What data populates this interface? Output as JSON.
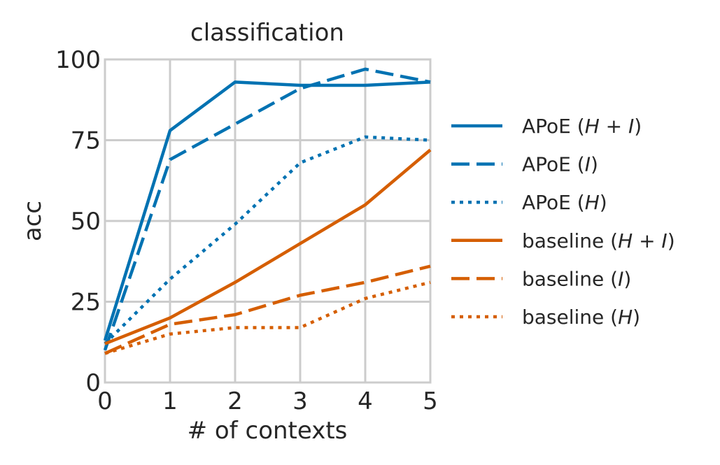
{
  "chart_data": {
    "type": "line",
    "title": "classification",
    "xlabel": "# of contexts",
    "ylabel": "acc",
    "xlim": [
      0,
      5
    ],
    "ylim": [
      0,
      100
    ],
    "xticks": [
      0,
      1,
      2,
      3,
      4,
      5
    ],
    "yticks": [
      0,
      25,
      50,
      75,
      100
    ],
    "grid": true,
    "legend_position": "right",
    "x": [
      0,
      1,
      2,
      3,
      4,
      5
    ],
    "series": [
      {
        "name": "APoE (H + I)",
        "legend_base": "APoE",
        "legend_var": "H + I",
        "color": "#0072b2",
        "dash": "solid",
        "values": [
          13,
          78,
          93,
          92,
          92,
          93
        ]
      },
      {
        "name": "APoE (I)",
        "legend_base": "APoE",
        "legend_var": "I",
        "color": "#0072b2",
        "dash": "dashed",
        "values": [
          10,
          69,
          80,
          91,
          97,
          93
        ]
      },
      {
        "name": "APoE (H)",
        "legend_base": "APoE",
        "legend_var": "H",
        "color": "#0072b2",
        "dash": "dotted",
        "values": [
          12,
          32,
          49,
          68,
          76,
          75
        ]
      },
      {
        "name": "baseline (H + I)",
        "legend_base": "baseline",
        "legend_var": "H + I",
        "color": "#d55e00",
        "dash": "solid",
        "values": [
          12,
          20,
          31,
          43,
          55,
          72
        ]
      },
      {
        "name": "baseline (I)",
        "legend_base": "baseline",
        "legend_var": "I",
        "color": "#d55e00",
        "dash": "dashed",
        "values": [
          9,
          18,
          21,
          27,
          31,
          36
        ]
      },
      {
        "name": "baseline (H)",
        "legend_base": "baseline",
        "legend_var": "H",
        "color": "#d55e00",
        "dash": "dotted",
        "values": [
          9,
          15,
          17,
          17,
          26,
          31
        ]
      }
    ]
  }
}
